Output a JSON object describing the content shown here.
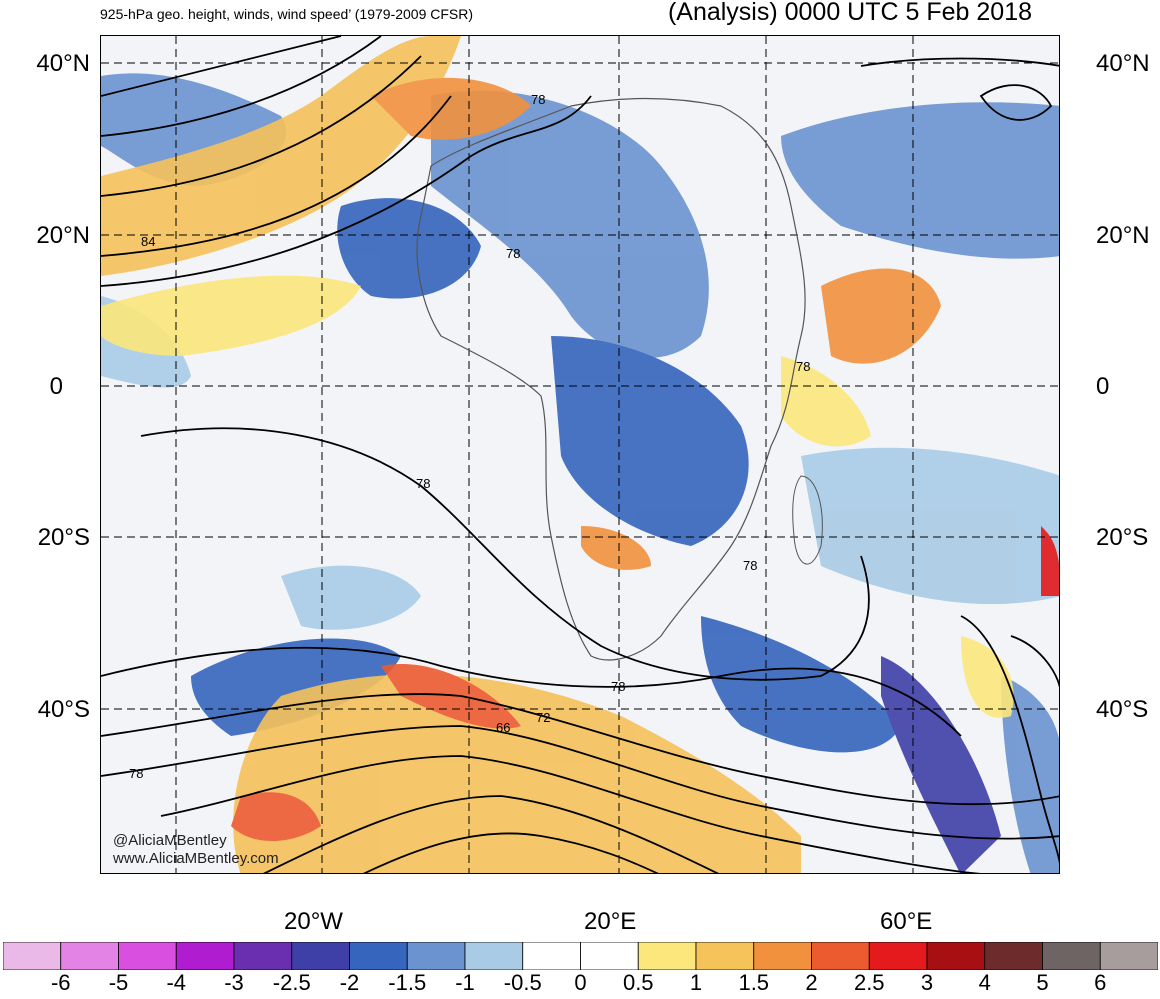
{
  "header": {
    "left_title": "925-hPa geo. height, winds, wind speed’ (1979-2009 CFSR)",
    "right_title": "(Analysis) 0000 UTC 5 Feb 2018"
  },
  "axes": {
    "lat_labels": [
      "40°N",
      "20°N",
      "0",
      "20°S",
      "40°S"
    ],
    "lon_labels": [
      "20°W",
      "20°E",
      "60°E"
    ]
  },
  "contour_labels": [
    "78",
    "84",
    "78",
    "78",
    "78",
    "78",
    "78",
    "66",
    "72",
    "78"
  ],
  "credit": {
    "line1": "@AliciaMBentley",
    "line2": "www.AliciaMBentley.com"
  },
  "colorbar": {
    "labels": [
      "-6",
      "-5",
      "-4",
      "-3",
      "-2.5",
      "-2",
      "-1.5",
      "-1",
      "-0.5",
      "0",
      "0.5",
      "1",
      "1.5",
      "2",
      "2.5",
      "3",
      "4",
      "5",
      "6"
    ],
    "colors": [
      "#ebb9e8",
      "#e483e6",
      "#d94fe0",
      "#b01ccf",
      "#6a2fb0",
      "#3f3fa8",
      "#3565bd",
      "#6a93cf",
      "#a9cbe6",
      "#ffffff",
      "#ffffff",
      "#fbe77c",
      "#f6c25a",
      "#f1913e",
      "#ec5a30",
      "#e41a1c",
      "#a80f12",
      "#6e2b2b",
      "#6f6464",
      "#a79d9d"
    ]
  },
  "colors": {
    "land_shade": "#c8c8c8",
    "contour": "#000000",
    "coast": "#555555"
  }
}
